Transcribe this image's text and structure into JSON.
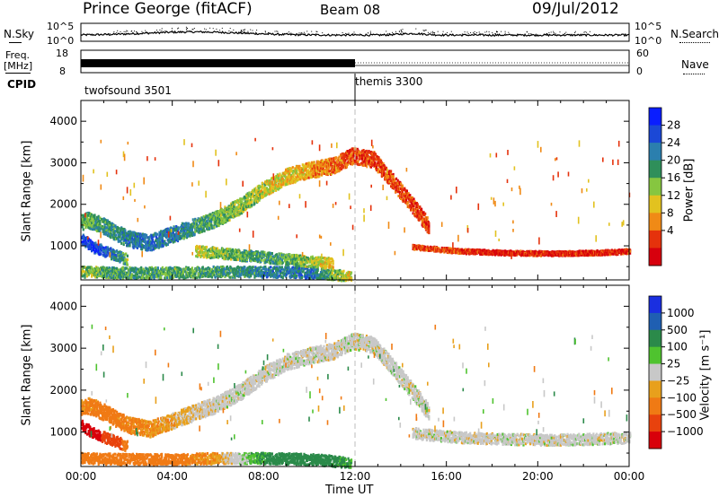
{
  "header": {
    "station": "Prince George (fitACF)",
    "beam": "Beam 08",
    "date": "09/Jul/2012"
  },
  "sky_panel": {
    "left_label": "N.Sky",
    "right_label": "N.Search",
    "ticks": [
      "10^5",
      "10^0"
    ]
  },
  "freq_panel": {
    "left_label_1": "Freq.",
    "left_label_2": "[MHz]",
    "right_label": "Nave",
    "left_ticks": [
      "18",
      "8"
    ],
    "right_ticks": [
      "60",
      "0"
    ]
  },
  "cpid_panel": {
    "label": "CPID",
    "modes": [
      {
        "name": "twofsound 3501",
        "start_hour": 0,
        "end_hour": 12
      },
      {
        "name": "themis 3300",
        "start_hour": 12,
        "end_hour": 24
      }
    ]
  },
  "colors": {
    "power_scale": [
      "#0a1eff",
      "#1b48d6",
      "#2b7fae",
      "#2f8f5a",
      "#86c640",
      "#e2c21f",
      "#f08a16",
      "#e5320c",
      "#d7000d"
    ],
    "velocity_scale": [
      "#1a2fe0",
      "#1f5fb2",
      "#2b8a4a",
      "#4fc32f",
      "#c8c8c8",
      "#e8a01c",
      "#f07a14",
      "#e8420d",
      "#d8000a"
    ]
  },
  "chart_data": [
    {
      "type": "heatmap",
      "title": "Power",
      "ylabel": "Slant Range [km]",
      "xlabel": "Time UT",
      "xlim": [
        0,
        24
      ],
      "ylim": [
        180,
        4500
      ],
      "yticks": [
        1000,
        2000,
        3000,
        4000
      ],
      "xticks": [
        "00:00",
        "04:00",
        "08:00",
        "12:00",
        "16:00",
        "20:00",
        "00:00"
      ],
      "colorbar": {
        "label": "Power [dB]",
        "ticks": [
          "28",
          "24",
          "20",
          "16",
          "12",
          "8",
          "4"
        ]
      },
      "echo_regions": [
        {
          "t": [
            0.0,
            0.3,
            1.0,
            2.0,
            3.0,
            4.0,
            5.0,
            6.0,
            7.0,
            8.0,
            9.0,
            10.0,
            11.0,
            11.9,
            12.8,
            13.6,
            14.5,
            15.2
          ],
          "r": [
            1600,
            1650,
            1500,
            1200,
            1100,
            1300,
            1500,
            1700,
            2000,
            2400,
            2700,
            2850,
            2950,
            3200,
            3100,
            2600,
            2000,
            1500
          ],
          "power_dB": [
            18,
            18,
            20,
            22,
            24,
            22,
            20,
            18,
            16,
            14,
            12,
            10,
            8,
            6,
            6,
            6,
            6,
            6
          ]
        },
        {
          "t": [
            0.0,
            0.5,
            1.0,
            1.5,
            2.0
          ],
          "r": [
            1200,
            1000,
            900,
            800,
            700
          ],
          "power_dB": [
            28,
            28,
            26,
            22,
            18
          ]
        },
        {
          "t": [
            0.0,
            2.0,
            4.0,
            6.0,
            8.0,
            10.0,
            11.8
          ],
          "r": [
            400,
            380,
            380,
            400,
            400,
            380,
            300
          ],
          "power_dB": [
            16,
            20,
            18,
            20,
            22,
            24,
            12
          ]
        },
        {
          "t": [
            5.0,
            6.0,
            7.0,
            8.0,
            9.0,
            10.0,
            11.0
          ],
          "r": [
            900,
            850,
            800,
            750,
            700,
            650,
            600
          ],
          "power_dB": [
            14,
            16,
            18,
            20,
            18,
            16,
            12
          ]
        },
        {
          "t": [
            14.5,
            15.5,
            16.5,
            17.5,
            18.5,
            19.5,
            20.5,
            21.5,
            22.5,
            23.5,
            24.0
          ],
          "r": [
            1000,
            950,
            900,
            880,
            860,
            850,
            840,
            850,
            860,
            880,
            900
          ],
          "power_dB": [
            6,
            6,
            6,
            4,
            4,
            4,
            4,
            4,
            4,
            4,
            4
          ]
        }
      ]
    },
    {
      "type": "heatmap",
      "title": "Velocity",
      "ylabel": "Slant Range [km]",
      "xlabel": "Time UT",
      "xlim": [
        0,
        24
      ],
      "ylim": [
        180,
        4500
      ],
      "yticks": [
        1000,
        2000,
        3000,
        4000
      ],
      "xticks": [
        "00:00",
        "04:00",
        "08:00",
        "12:00",
        "16:00",
        "20:00",
        "00:00"
      ],
      "colorbar": {
        "label": "Velocity [m s⁻¹]",
        "ticks": [
          "1000",
          "500",
          "100",
          "25",
          "−25",
          "−100",
          "−500",
          "−1000"
        ]
      },
      "echo_regions": [
        {
          "t": [
            0.0,
            0.3,
            1.0,
            2.0,
            3.0,
            4.0,
            5.0,
            6.0,
            7.0,
            8.0,
            9.0,
            10.0,
            11.0,
            11.9,
            12.8,
            13.6,
            14.5,
            15.2
          ],
          "r": [
            1600,
            1650,
            1500,
            1200,
            1100,
            1300,
            1500,
            1700,
            2000,
            2400,
            2700,
            2850,
            2950,
            3200,
            3100,
            2600,
            2000,
            1500
          ],
          "velocity_ms": [
            -60,
            -80,
            -100,
            -80,
            -60,
            -40,
            -20,
            0,
            0,
            0,
            0,
            0,
            0,
            0,
            0,
            0,
            0,
            0
          ]
        },
        {
          "t": [
            0.0,
            0.5,
            1.0,
            1.5,
            2.0
          ],
          "r": [
            1200,
            1000,
            900,
            800,
            700
          ],
          "velocity_ms": [
            -900,
            -900,
            -700,
            -400,
            -200
          ]
        },
        {
          "t": [
            0.0,
            2.0,
            4.0,
            6.0,
            8.0,
            10.0,
            11.8
          ],
          "r": [
            400,
            380,
            380,
            400,
            400,
            380,
            300
          ],
          "velocity_ms": [
            -150,
            -150,
            -100,
            -50,
            80,
            120,
            60
          ]
        },
        {
          "t": [
            14.5,
            15.5,
            16.5,
            17.5,
            18.5,
            19.5,
            20.5,
            21.5,
            22.5,
            23.5,
            24.0
          ],
          "r": [
            1000,
            950,
            900,
            880,
            860,
            850,
            840,
            850,
            860,
            880,
            900
          ],
          "velocity_ms": [
            0,
            0,
            0,
            0,
            0,
            0,
            0,
            0,
            0,
            0,
            0
          ]
        }
      ]
    }
  ]
}
